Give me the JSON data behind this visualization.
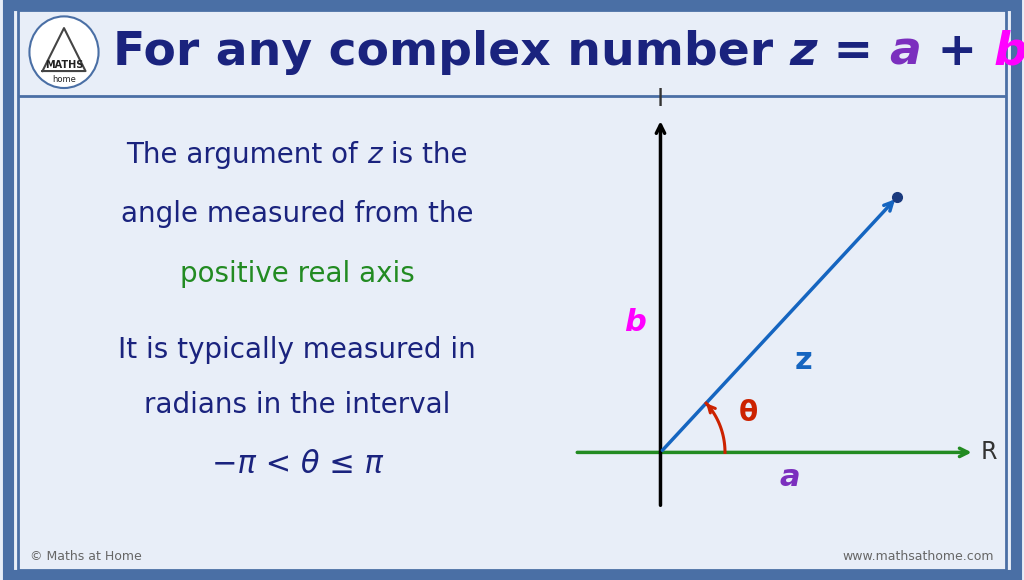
{
  "bg_color": "#e8eef8",
  "border_color": "#4a6fa5",
  "title_color": "#1a237e",
  "title_italic_color": "#7b2fbe",
  "title_bi_color": "#ff00ff",
  "text_dark": "#1a237e",
  "text_green": "#228B22",
  "axis_color": "#000000",
  "real_axis_color": "#228B22",
  "vector_color": "#1565c0",
  "angle_color": "#cc2200",
  "label_b_color": "#ff00ff",
  "label_a_color": "#7b2fbe",
  "label_z_color": "#1565c0",
  "footer_left": "© Maths at Home",
  "footer_right": "www.mathsathome.com",
  "text_line1a": "The argument of ",
  "text_line1b": "z",
  "text_line1c": " is the",
  "text_line2": "angle measured from the",
  "text_line3": "positive real axis",
  "text_line4": "It is typically measured in",
  "text_line5": "radians in the interval",
  "text_line6": "−π < θ ≤ π"
}
